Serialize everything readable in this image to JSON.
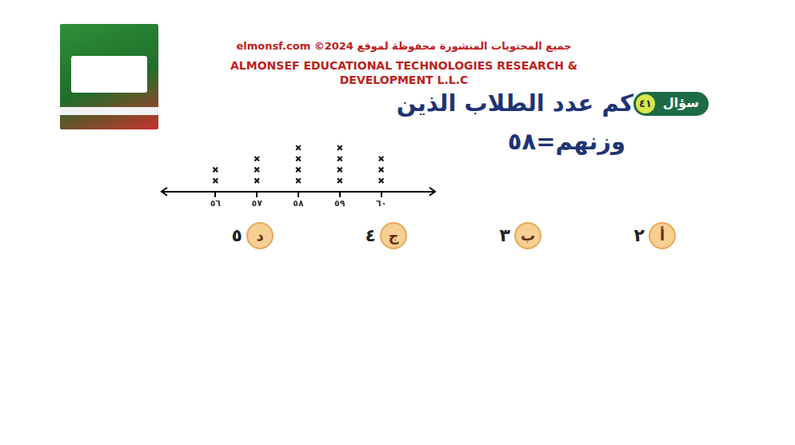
{
  "header": {
    "lines": [
      "جميع المحتويات المنشورة محفوظة لموقع elmonsf.com ©2024",
      "ALMONSEF EDUCATIONAL TECHNOLOGIES RESEARCH &",
      "DEVELOPMENT L.L.C"
    ]
  },
  "question": {
    "label": "سؤال",
    "number": "٤١",
    "text_lines": [
      "كم عدد الطلاب الذين",
      "وزنهم=٥٨"
    ]
  },
  "chart_data": {
    "type": "dot_plot",
    "x": [
      56,
      57,
      58,
      59,
      60
    ],
    "values": [
      2,
      3,
      4,
      4,
      3
    ],
    "xlim": [
      54.7,
      61.3
    ],
    "xticks": [
      {
        "value": 56,
        "label": "٥٦"
      },
      {
        "value": 57,
        "label": "٥٧"
      },
      {
        "value": 58,
        "label": "٥٨"
      },
      {
        "value": 59,
        "label": "٥٩"
      },
      {
        "value": 60,
        "label": "٦٠"
      }
    ],
    "marker": "x",
    "color": "#111111",
    "tick_labels": "x",
    "grid": false
  },
  "options": [
    {
      "letter": "أ",
      "text": "٢"
    },
    {
      "letter": "ب",
      "text": "٣"
    },
    {
      "letter": "ج",
      "text": "٤"
    },
    {
      "letter": "د",
      "text": "٥"
    }
  ]
}
